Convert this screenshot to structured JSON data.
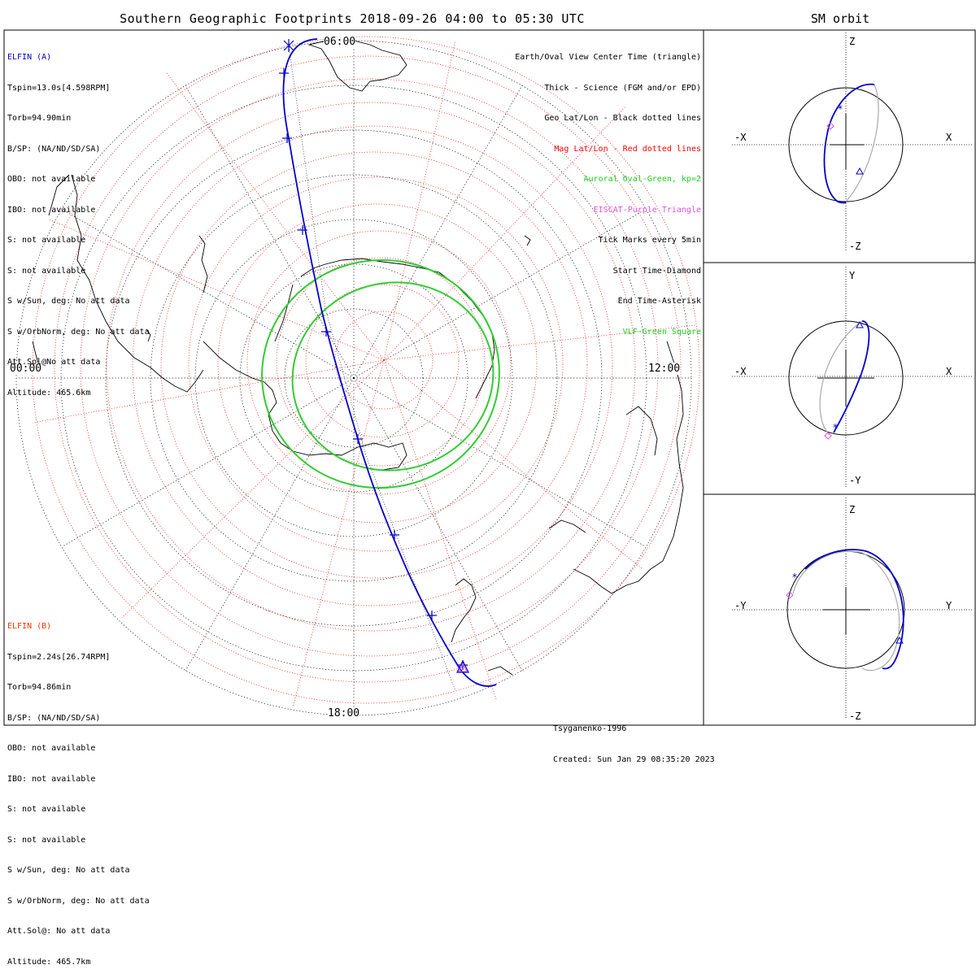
{
  "title": "Southern Geographic Footprints 2018-09-26 04:00 to 05:30 UTC",
  "sm_title": "SM orbit",
  "hours": {
    "top": "06:00",
    "left": "00:00",
    "right": "12:00",
    "bottom": "18:00"
  },
  "sat_a": {
    "name": "ELFIN (A)",
    "lines": [
      "Tspin=13.0s[4.598RPM]",
      "Torb=94.90min",
      "B/SP: (NA/ND/SD/SA)",
      "OBO: not available",
      "IBO: not available",
      "S: not available",
      "S: not available",
      "S w/Sun, deg: No att data",
      "S w/OrbNorm, deg: No att data",
      "Att.Sol@No att data",
      "Altitude: 465.6km"
    ]
  },
  "sat_b": {
    "name": "ELFIN (B)",
    "lines": [
      "Tspin=2.24s[26.74RPM]",
      "Torb=94.86min",
      "B/SP: (NA/ND/SD/SA)",
      "OBO: not available",
      "IBO: not available",
      "S: not available",
      "S: not available",
      "S w/Sun, deg: No att data",
      "S w/OrbNorm, deg: No att data",
      "Att.Sol@: No att data",
      "Altitude: 465.7km"
    ]
  },
  "legend": [
    {
      "text": "Earth/Oval View Center Time (triangle)",
      "color": "#000000"
    },
    {
      "text": "Thick - Science (FGM and/or EPD)",
      "color": "#000000"
    },
    {
      "text": "Geo Lat/Lon - Black dotted lines",
      "color": "#000000"
    },
    {
      "text": "Mag Lat/Lon - Red dotted lines",
      "color": "#ff0000"
    },
    {
      "text": "Auroral Oval-Green, kp=2",
      "color": "#22cc22"
    },
    {
      "text": "EISCAT-Purple Triangle",
      "color": "#dd55dd"
    },
    {
      "text": "Tick Marks every 5min",
      "color": "#000000"
    },
    {
      "text": "Start Time-Diamond",
      "color": "#000000"
    },
    {
      "text": "End Time-Asterisk",
      "color": "#000000"
    },
    {
      "text": "VLF-Green Square",
      "color": "#22cc22"
    }
  ],
  "footer": {
    "model": "Tsyganenko-1996",
    "created": "Created: Sun Jan 29 08:35:20 2023"
  },
  "sm_panels": [
    {
      "top": "Z",
      "bottom": "-Z",
      "left": "-X",
      "right": "X"
    },
    {
      "top": "Y",
      "bottom": "-Y",
      "left": "-X",
      "right": "X"
    },
    {
      "top": "Z",
      "bottom": "-Z",
      "left": "-Y",
      "right": "Y"
    }
  ],
  "colors": {
    "track": "#0000cc",
    "auroral": "#33cc33",
    "mag_grid": "#ff0000",
    "geo_grid": "#000000",
    "sat_a": "#0000cc",
    "sat_b": "#ff3300"
  }
}
